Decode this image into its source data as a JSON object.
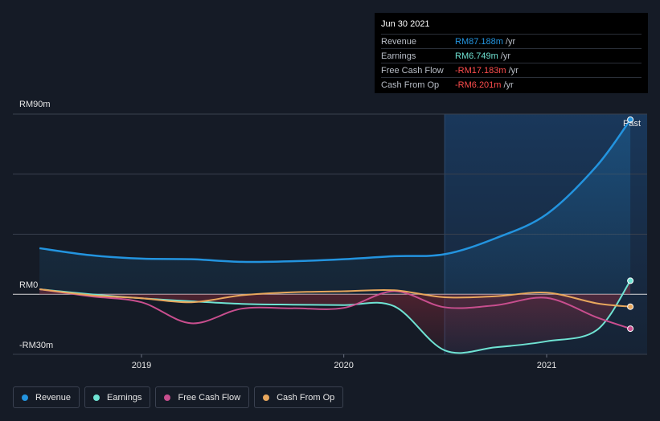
{
  "chart_data": {
    "type": "line",
    "y_axis": {
      "max_label": "RM90m",
      "zero_label": "RM0",
      "min_label": "-RM30m",
      "ylim": [
        -30,
        90
      ]
    },
    "x_ticks": [
      "2019",
      "2020",
      "2021"
    ],
    "past_label": "Past",
    "series": [
      {
        "name": "Revenue",
        "color": "#2394df",
        "x": [
          "2018-07",
          "2018-10",
          "2019-01",
          "2019-04",
          "2019-07",
          "2019-10",
          "2020-01",
          "2020-04",
          "2020-07",
          "2020-10",
          "2021-01",
          "2021-04",
          "2021-06"
        ],
        "values": [
          23,
          19.5,
          17.8,
          17.5,
          16.2,
          16.5,
          17.5,
          19,
          20,
          28,
          40,
          64,
          87.188
        ]
      },
      {
        "name": "Earnings",
        "color": "#6fe3d3",
        "x": [
          "2018-07",
          "2018-10",
          "2019-01",
          "2019-04",
          "2019-07",
          "2019-10",
          "2020-01",
          "2020-04",
          "2020-07",
          "2020-10",
          "2021-01",
          "2021-04",
          "2021-06"
        ],
        "values": [
          2.5,
          0,
          -2,
          -3.5,
          -4.8,
          -5.2,
          -5.4,
          -6,
          -28,
          -26.5,
          -23.5,
          -18,
          6.749
        ]
      },
      {
        "name": "Free Cash Flow",
        "color": "#c84e8e",
        "x": [
          "2018-07",
          "2018-10",
          "2019-01",
          "2019-04",
          "2019-07",
          "2019-10",
          "2020-01",
          "2020-04",
          "2020-07",
          "2020-10",
          "2021-01",
          "2021-04",
          "2021-06"
        ],
        "values": [
          2.5,
          -1,
          -4,
          -14.5,
          -7.2,
          -7,
          -6.8,
          1.5,
          -6.5,
          -5.5,
          -1.8,
          -11.5,
          -17.183
        ]
      },
      {
        "name": "Cash From Op",
        "color": "#e8a75d",
        "x": [
          "2018-07",
          "2018-10",
          "2019-01",
          "2019-04",
          "2019-07",
          "2019-10",
          "2020-01",
          "2020-04",
          "2020-07",
          "2020-10",
          "2021-01",
          "2021-04",
          "2021-06"
        ],
        "values": [
          2.5,
          -0.5,
          -2,
          -4,
          -0.5,
          1,
          1.5,
          2,
          -1.5,
          -1,
          0.8,
          -4.5,
          -6.201
        ]
      }
    ],
    "grid": true,
    "legend": "bottom-left"
  },
  "tooltip": {
    "date": "Jun 30 2021",
    "rows": [
      {
        "label": "Revenue",
        "value": "RM87.188m",
        "unit": "/yr",
        "color": "#2394df"
      },
      {
        "label": "Earnings",
        "value": "RM6.749m",
        "unit": "/yr",
        "color": "#6fe3d3"
      },
      {
        "label": "Free Cash Flow",
        "value": "-RM17.183m",
        "unit": "/yr",
        "color": "#ff4d4d"
      },
      {
        "label": "Cash From Op",
        "value": "-RM6.201m",
        "unit": "/yr",
        "color": "#ff4d4d"
      }
    ]
  },
  "legend": [
    {
      "label": "Revenue",
      "color": "#2394df"
    },
    {
      "label": "Earnings",
      "color": "#6fe3d3"
    },
    {
      "label": "Free Cash Flow",
      "color": "#c84e8e"
    },
    {
      "label": "Cash From Op",
      "color": "#e8a75d"
    }
  ]
}
